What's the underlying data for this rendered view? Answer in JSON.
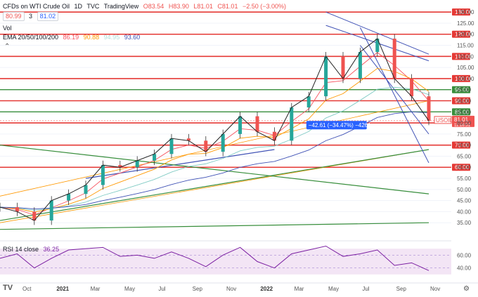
{
  "header": {
    "symbol": "CFDs on WTI Crude Oil",
    "interval": "1D",
    "source": "TVC",
    "brand": "TradingView",
    "ohlc": {
      "o": "O83.54",
      "h": "H83.90",
      "l": "L81.01",
      "c": "C81.01",
      "chg": "−2.50 (−3.00%)"
    },
    "bid": "80.99",
    "spread": "3",
    "ask": "81.02",
    "vol": "Vol",
    "ema_label": "EMA 20/50/100/200",
    "ema_values": [
      "86.19",
      "90.88",
      "94.95",
      "93.60"
    ],
    "rsi_label": "RSI 14 close",
    "rsi_value": "36.25"
  },
  "colors": {
    "up": "#26a69a",
    "down": "#ef5350",
    "support": "#e53935",
    "green_level": "#388e3c",
    "channel_blue": "#3f51b5",
    "orange": "#ff9800",
    "rsi_fill": "#f3e5f5",
    "rsi_line": "#7b1fa2",
    "label_blue": "#2962ff"
  },
  "measure_label": "−42.61 (−34.47%) −4261",
  "price_tag": {
    "symbol": "USOIL",
    "price": "81.01",
    "countdown": "11:16:31"
  },
  "chart_data": [
    {
      "type": "line",
      "x_axis_labels": [
        "Oct",
        "2021",
        "Mar",
        "May",
        "Jul",
        "Sep",
        "Nov",
        "2022",
        "Mar",
        "May",
        "Jul",
        "Sep",
        "Nov"
      ],
      "y_ticks": [
        35,
        40,
        45,
        50,
        55,
        60,
        65,
        70,
        75,
        80,
        85,
        90,
        95,
        100,
        105,
        110,
        115,
        120,
        125,
        130
      ],
      "ylim": [
        30,
        131
      ],
      "highlighted_levels": [
        60,
        70,
        80,
        81.01,
        85,
        90,
        95,
        100,
        110,
        120
      ],
      "series": [
        {
          "x": [
            "2020-08",
            "2020-09",
            "2020-10",
            "2020-11",
            "2020-12",
            "2021-01",
            "2021-02",
            "2021-03",
            "2021-04",
            "2021-05",
            "2021-06",
            "2021-07",
            "2021-08",
            "2021-09",
            "2021-10",
            "2021-11",
            "2021-12",
            "2022-01",
            "2022-02",
            "2022-03",
            "2022-04",
            "2022-05",
            "2022-06",
            "2022-07",
            "2022-08",
            "2022-09"
          ],
          "y": [
            42,
            40,
            36,
            45,
            48,
            52,
            61,
            60,
            63,
            66,
            73,
            72,
            67,
            75,
            83,
            76,
            72,
            87,
            92,
            110,
            100,
            112,
            118,
            100,
            92,
            81
          ]
        }
      ],
      "support_levels": [
        60,
        70,
        80,
        90,
        100,
        110,
        120,
        130
      ],
      "green_levels": [
        85,
        95
      ]
    },
    {
      "type": "line",
      "title": "RSI 14 close",
      "y_ticks": [
        40,
        60
      ],
      "last_value": 36.25,
      "series": [
        {
          "y": [
            55,
            62,
            40,
            55,
            68,
            70,
            72,
            58,
            60,
            55,
            65,
            55,
            42,
            60,
            72,
            50,
            40,
            62,
            68,
            74,
            58,
            62,
            68,
            44,
            48,
            36
          ]
        }
      ]
    }
  ]
}
